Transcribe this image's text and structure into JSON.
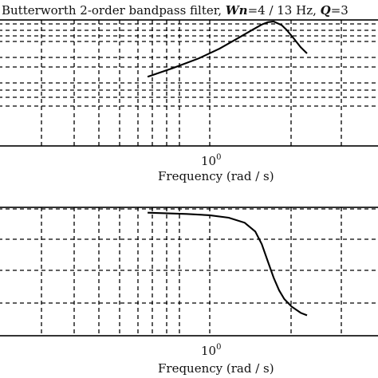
{
  "title_parts": {
    "prefix": "Butterworth 2-order bandpass filter, ",
    "wn_var": "Wn",
    "wn_val": "=4 / 13 Hz",
    "q_sep": ", ",
    "q_var": "Q",
    "q_val": "=3"
  },
  "chart_data": [
    {
      "type": "line",
      "xlabel": "Frequency (rad / s)",
      "xscale": "log",
      "xtick_labels": [
        {
          "base": "10",
          "exp": "0"
        }
      ],
      "grid": true,
      "description_of_curve": "magnitude response rising to a peak then falling",
      "series": [
        {
          "x": [
            0.55,
            0.7,
            0.9,
            1.1,
            1.3,
            1.5,
            1.65,
            1.75,
            1.85,
            2.0,
            2.1,
            2.25,
            2.4,
            2.55
          ],
          "y": [
            0.55,
            0.62,
            0.7,
            0.78,
            0.86,
            0.93,
            0.975,
            0.995,
            1.0,
            0.97,
            0.93,
            0.86,
            0.79,
            0.74
          ]
        }
      ]
    },
    {
      "type": "line",
      "xlabel": "Frequency (rad / s)",
      "xscale": "log",
      "xtick_labels": [
        {
          "base": "10",
          "exp": "0"
        }
      ],
      "grid": true,
      "series": [
        {
          "x": [
            0.55,
            0.8,
            1.0,
            1.2,
            1.4,
            1.55,
            1.65,
            1.75,
            1.85,
            1.95,
            2.05,
            2.2,
            2.4,
            2.55
          ],
          "y": [
            0.97,
            0.96,
            0.95,
            0.93,
            0.89,
            0.82,
            0.72,
            0.58,
            0.45,
            0.35,
            0.28,
            0.22,
            0.17,
            0.15
          ]
        }
      ]
    }
  ]
}
